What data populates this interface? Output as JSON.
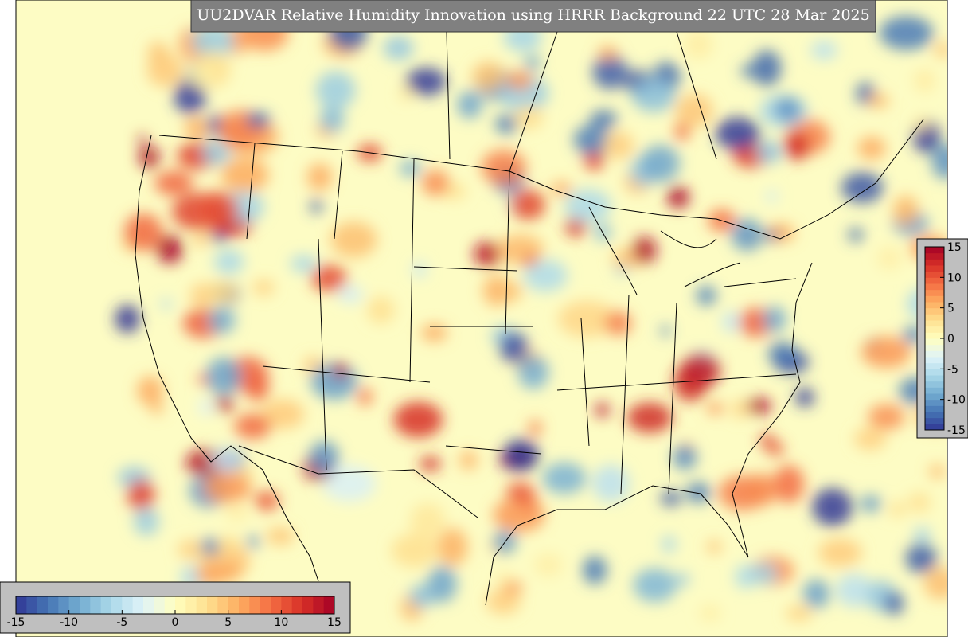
{
  "title": "UU2DVAR Relative Humidity Innovation using HRRR Background 22 UTC 28 Mar 2025",
  "colors": [
    "#313695",
    "#4575b4",
    "#74add1",
    "#abd9e9",
    "#e0f3f8",
    "#ffffbf",
    "#fee090",
    "#fdae61",
    "#f46d43",
    "#d73027",
    "#a50026"
  ],
  "colorbars": [
    {
      "orientation": "horizontal",
      "range": [
        -15,
        15
      ],
      "ticks": [
        -15,
        -10,
        -5,
        0,
        5,
        10,
        15
      ]
    },
    {
      "orientation": "vertical",
      "range": [
        -15,
        15
      ],
      "ticks": [
        -15,
        -10,
        -5,
        0,
        5,
        10,
        15
      ]
    }
  ]
}
